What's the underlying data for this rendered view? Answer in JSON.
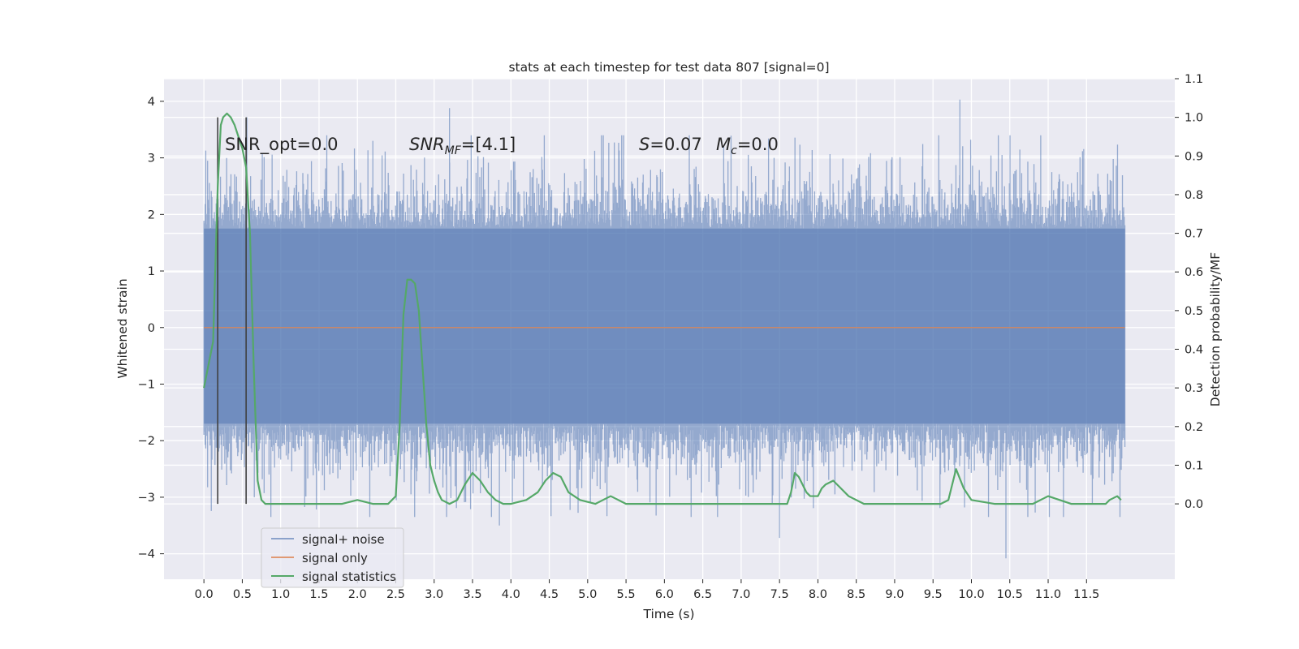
{
  "chart_data": {
    "type": "line",
    "title": "stats at each timestep for test data 807 [signal=0]",
    "xlabel": "Time (s)",
    "ylabel": "Whitened strain",
    "y2label": "Detection probability/MF",
    "xlim": [
      -0.52,
      12.65
    ],
    "ylim": [
      -4.45,
      4.4
    ],
    "y2lim": [
      -0.195,
      1.1
    ],
    "xticks": [
      0.0,
      0.5,
      1.0,
      1.5,
      2.0,
      2.5,
      3.0,
      3.5,
      4.0,
      4.5,
      5.0,
      5.5,
      6.0,
      6.5,
      7.0,
      7.5,
      8.0,
      8.5,
      9.0,
      9.5,
      10.0,
      10.5,
      11.0,
      11.5
    ],
    "xtick_labels": [
      "0.0",
      "0.5",
      "1.0",
      "1.5",
      "2.0",
      "2.5",
      "3.0",
      "3.5",
      "4.0",
      "4.5",
      "5.0",
      "5.5",
      "6.0",
      "6.5",
      "7.0",
      "7.5",
      "8.0",
      "8.5",
      "9.0",
      "9.5",
      "10.0",
      "10.5",
      "11.0",
      "11.5"
    ],
    "yticks": [
      -4,
      -3,
      -2,
      -1,
      0,
      1,
      2,
      3,
      4
    ],
    "ytick_labels": [
      "−4",
      "−3",
      "−2",
      "−1",
      "0",
      "1",
      "2",
      "3",
      "4"
    ],
    "y2ticks": [
      0.0,
      0.1,
      0.2,
      0.3,
      0.4,
      0.5,
      0.6,
      0.7,
      0.8,
      0.9,
      1.0,
      1.1
    ],
    "y2tick_labels": [
      "0.0",
      "0.1",
      "0.2",
      "0.3",
      "0.4",
      "0.5",
      "0.6",
      "0.7",
      "0.8",
      "0.9",
      "1.0",
      "1.1"
    ],
    "grid": true,
    "legend_position": "lower-left",
    "colors": {
      "background": "#eaeaf2",
      "grid": "#ffffff",
      "noise": "#4c72b0",
      "signal_only": "#dd8452",
      "statistics": "#55a868",
      "marker": "#404040"
    },
    "series": [
      {
        "name": "signal+ noise",
        "kind": "noise-band",
        "t_range": [
          0.0,
          12.0
        ],
        "typical_range": [
          -1.7,
          1.75
        ],
        "extreme_peaks": [
          {
            "t": 0.56,
            "v": 3.72
          },
          {
            "t": 3.2,
            "v": 3.88
          },
          {
            "t": 9.85,
            "v": 4.03
          },
          {
            "t": 10.45,
            "v": -4.08
          },
          {
            "t": 3.85,
            "v": -3.5
          },
          {
            "t": 7.5,
            "v": -3.72
          }
        ]
      },
      {
        "name": "signal only",
        "kind": "flat",
        "t_range": [
          0.0,
          12.0
        ],
        "value": 0.0
      },
      {
        "name": "signal statistics",
        "axis": "right",
        "t": [
          0.0,
          0.12,
          0.18,
          0.22,
          0.25,
          0.3,
          0.35,
          0.4,
          0.45,
          0.5,
          0.55,
          0.6,
          0.65,
          0.7,
          0.75,
          0.8,
          0.9,
          1.0,
          1.2,
          1.5,
          1.8,
          2.0,
          2.2,
          2.4,
          2.5,
          2.55,
          2.6,
          2.65,
          2.7,
          2.75,
          2.8,
          2.85,
          2.9,
          2.95,
          3.0,
          3.05,
          3.1,
          3.2,
          3.3,
          3.4,
          3.5,
          3.6,
          3.7,
          3.8,
          3.9,
          4.0,
          4.2,
          4.35,
          4.45,
          4.55,
          4.65,
          4.75,
          4.9,
          5.1,
          5.2,
          5.3,
          5.4,
          5.5,
          5.6,
          6.0,
          6.5,
          7.0,
          7.3,
          7.5,
          7.6,
          7.65,
          7.7,
          7.75,
          7.8,
          7.85,
          7.9,
          8.0,
          8.05,
          8.1,
          8.2,
          8.3,
          8.4,
          8.6,
          9.0,
          9.5,
          9.6,
          9.7,
          9.75,
          9.8,
          9.9,
          10.0,
          10.3,
          10.6,
          10.8,
          11.0,
          11.3,
          11.6,
          11.75,
          11.8,
          11.9,
          11.95
        ],
        "values": [
          0.3,
          0.42,
          0.82,
          0.98,
          1.0,
          1.01,
          1.0,
          0.98,
          0.95,
          0.92,
          0.87,
          0.7,
          0.35,
          0.06,
          0.01,
          0.0,
          0.0,
          0.0,
          0.0,
          0.0,
          0.0,
          0.01,
          0.0,
          0.0,
          0.02,
          0.2,
          0.49,
          0.58,
          0.58,
          0.57,
          0.5,
          0.35,
          0.2,
          0.1,
          0.06,
          0.03,
          0.01,
          0.0,
          0.01,
          0.05,
          0.08,
          0.06,
          0.03,
          0.01,
          0.0,
          0.0,
          0.01,
          0.03,
          0.06,
          0.08,
          0.07,
          0.03,
          0.01,
          0.0,
          0.01,
          0.02,
          0.01,
          0.0,
          0.0,
          0.0,
          0.0,
          0.0,
          0.0,
          0.0,
          0.0,
          0.03,
          0.08,
          0.07,
          0.05,
          0.03,
          0.02,
          0.02,
          0.04,
          0.05,
          0.06,
          0.04,
          0.02,
          0.0,
          0.0,
          0.0,
          0.0,
          0.01,
          0.05,
          0.09,
          0.04,
          0.01,
          0.0,
          0.0,
          0.0,
          0.02,
          0.0,
          0.0,
          0.0,
          0.01,
          0.02,
          0.01
        ]
      }
    ],
    "vertical_markers": [
      0.18,
      0.55
    ],
    "annotations": [
      {
        "id": "snr-opt",
        "text": "SNR_opt=0.0"
      },
      {
        "id": "snr-mf",
        "text": "SNR_MF=[4.1]"
      },
      {
        "id": "s-value",
        "text": "S=0.07"
      },
      {
        "id": "mc-value",
        "text": "M_c=0.0"
      }
    ],
    "legend": [
      "signal+ noise",
      "signal only",
      "signal statistics"
    ]
  }
}
